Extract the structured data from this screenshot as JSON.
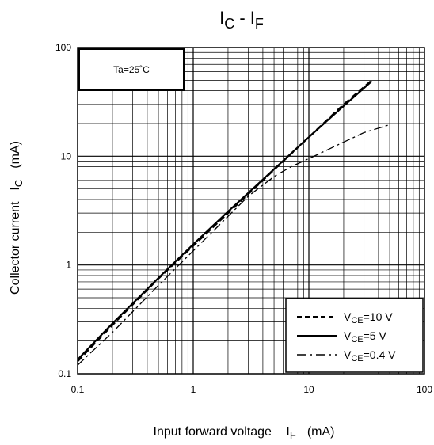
{
  "chart_data": {
    "type": "line",
    "title": "I_C - I_F",
    "title_parts": {
      "base1": "I",
      "sub1": "C",
      "dash": " - ",
      "base2": "I",
      "sub2": "F"
    },
    "xlabel": {
      "text": "Input forward voltage",
      "symbol": "I",
      "sub": "F",
      "unit": "(mA)"
    },
    "ylabel": {
      "text": "Collector current",
      "symbol": "I",
      "sub": "C",
      "unit": "(mA)"
    },
    "x_scale": "log",
    "y_scale": "log",
    "xlim": [
      0.1,
      100
    ],
    "ylim": [
      0.1,
      100
    ],
    "x_ticks": [
      {
        "value": 0.1,
        "label": "0.1"
      },
      {
        "value": 1,
        "label": "1"
      },
      {
        "value": 10,
        "label": "10"
      },
      {
        "value": 100,
        "label": "100"
      }
    ],
    "y_ticks": [
      {
        "value": 0.1,
        "label": "0.1"
      },
      {
        "value": 1,
        "label": "1"
      },
      {
        "value": 10,
        "label": "10"
      },
      {
        "value": 100,
        "label": "100"
      }
    ],
    "grid": true,
    "condition_label": "Ta=25˚C",
    "legend_position": "bottom-right",
    "series": [
      {
        "name": "V_CE=10 V",
        "label_parts": {
          "base": "V",
          "sub": "CE",
          "rest": "=10  V"
        },
        "style": "dashed",
        "x": [
          0.1,
          0.2,
          0.5,
          1,
          2,
          5,
          10,
          20,
          35
        ],
        "y": [
          0.13,
          0.28,
          0.75,
          1.5,
          3.0,
          7.5,
          15,
          30,
          50
        ]
      },
      {
        "name": "V_CE=5 V",
        "label_parts": {
          "base": "V",
          "sub": "CE",
          "rest": "=5  V"
        },
        "style": "solid",
        "x": [
          0.1,
          0.2,
          0.5,
          1,
          2,
          5,
          10,
          20,
          35
        ],
        "y": [
          0.135,
          0.29,
          0.76,
          1.55,
          3.1,
          7.6,
          15,
          29,
          49
        ]
      },
      {
        "name": "V_CE=0.4 V",
        "label_parts": {
          "base": "V",
          "sub": "CE",
          "rest": "=0.4  V"
        },
        "style": "dashdot",
        "x": [
          0.1,
          0.2,
          0.5,
          1,
          2,
          3,
          5,
          7,
          10,
          20,
          30,
          50
        ],
        "y": [
          0.12,
          0.24,
          0.65,
          1.35,
          2.8,
          4.3,
          6.5,
          8.0,
          9.5,
          13.5,
          16.5,
          19.5
        ]
      }
    ]
  }
}
